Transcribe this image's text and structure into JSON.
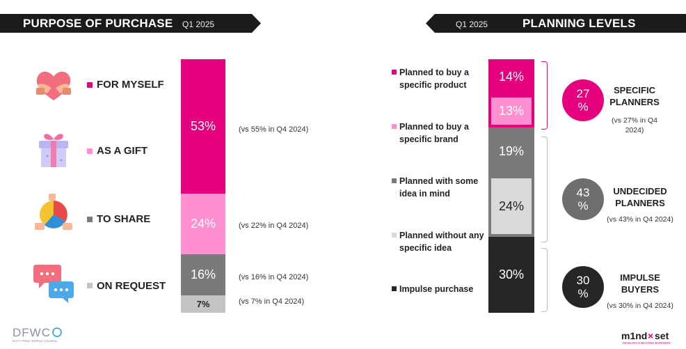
{
  "left_header": {
    "title": "PURPOSE OF PURCHASE",
    "period": "Q1 2025"
  },
  "right_header": {
    "title": "PLANNING LEVELS",
    "period": "Q1 2025"
  },
  "purpose": [
    {
      "label": "FOR MYSELF",
      "value_label": "53%",
      "note": "(vs 55% in Q4 2024)",
      "color": "#e5007e",
      "icon": "heart-hands-icon"
    },
    {
      "label": "AS A GIFT",
      "value_label": "24%",
      "note": "(vs 22% in Q4 2024)",
      "color": "#ff8fd1",
      "icon": "gift-box-icon"
    },
    {
      "label": "TO SHARE",
      "value_label": "16%",
      "note": "(vs 16% in Q4 2024)",
      "color": "#7a7a7a",
      "icon": "shared-pie-icon"
    },
    {
      "label": "ON REQUEST",
      "value_label": "7%",
      "note": "(vs 7% in Q4 2024)",
      "color": "#c4c4c4",
      "icon": "chat-bubbles-icon"
    }
  ],
  "planning": [
    {
      "label": "Planned to buy a specific product",
      "value_label": "14%",
      "color": "#e5007e"
    },
    {
      "label": "Planned to buy a specific brand",
      "value_label": "13%",
      "color": "#ff8fd1"
    },
    {
      "label": "Planned with some idea in mind",
      "value_label": "19%",
      "color": "#7a7a7a"
    },
    {
      "label": "Planned without any specific idea",
      "value_label": "24%",
      "color": "#d9d9d9"
    },
    {
      "label": "Impulse purchase",
      "value_label": "30%",
      "color": "#262626"
    }
  ],
  "groups": [
    {
      "value_label": "27 %",
      "title": "SPECIFIC PLANNERS",
      "note": "(vs 27% in Q4 2024)",
      "color": "#e5007e"
    },
    {
      "value_label": "43 %",
      "title": "UNDECIDED PLANNERS",
      "note": "(vs 43% in Q4 2024)",
      "color": "#6e6e6e"
    },
    {
      "value_label": "30 %",
      "title": "IMPULSE BUYERS",
      "note": "(vs 30% in Q4 2024)",
      "color": "#262626"
    }
  ],
  "logos": {
    "left": {
      "name": "DFWC",
      "line": "DUTY FREE WORLD COUNCIL"
    },
    "right": {
      "name": "m1nd-set",
      "line": "RESEARCH BEYOND BORDERS"
    }
  },
  "chart_data": [
    {
      "type": "bar",
      "title": "PURPOSE OF PURCHASE",
      "subtitle": "Q1 2025",
      "stacked": true,
      "categories": [
        "FOR MYSELF",
        "AS A GIFT",
        "TO SHARE",
        "ON REQUEST"
      ],
      "values": [
        53,
        24,
        16,
        7
      ],
      "previous_period_values": [
        55,
        22,
        16,
        7
      ]
    },
    {
      "type": "bar",
      "title": "PLANNING LEVELS",
      "subtitle": "Q1 2025",
      "stacked": true,
      "categories": [
        "Planned to buy a specific product",
        "Planned to buy a specific brand",
        "Planned with some idea in mind",
        "Planned without any specific idea",
        "Impulse purchase"
      ],
      "values": [
        14,
        13,
        19,
        24,
        30
      ],
      "groups": [
        {
          "name": "SPECIFIC PLANNERS",
          "value": 27,
          "previous": 27
        },
        {
          "name": "UNDECIDED PLANNERS",
          "value": 43,
          "previous": 43
        },
        {
          "name": "IMPULSE BUYERS",
          "value": 30,
          "previous": 30
        }
      ]
    }
  ]
}
